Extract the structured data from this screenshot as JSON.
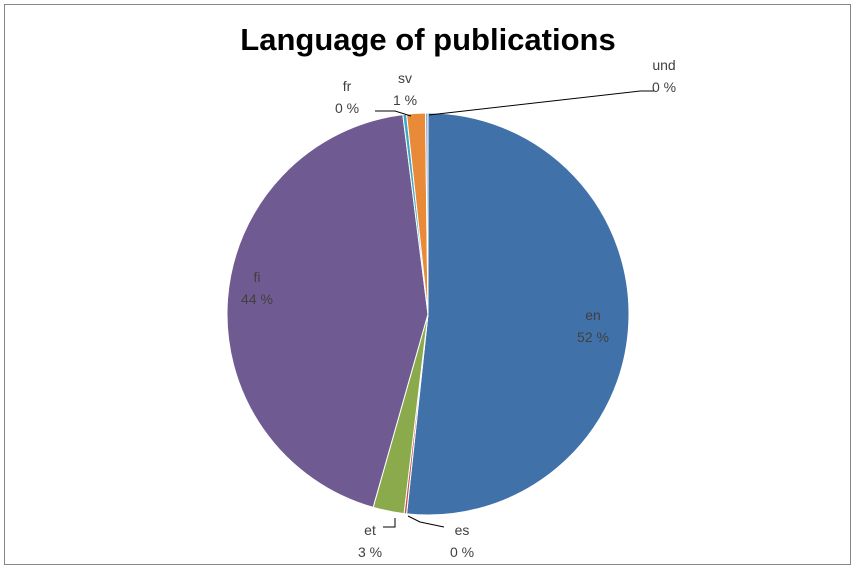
{
  "chart_data": {
    "type": "pie",
    "title": "Language of publications",
    "slices": [
      {
        "category": "en",
        "value": 51.7,
        "display": "52 %",
        "color": "#4071A9"
      },
      {
        "category": "es",
        "value": 0.2,
        "display": "0 %",
        "color": "#C0504D"
      },
      {
        "category": "et",
        "value": 2.5,
        "display": "3 %",
        "color": "#8BAA4B"
      },
      {
        "category": "fi",
        "value": 43.6,
        "display": "44 %",
        "color": "#705A92"
      },
      {
        "category": "fr",
        "value": 0.3,
        "display": "0 %",
        "color": "#3EA7C3"
      },
      {
        "category": "sv",
        "value": 1.5,
        "display": "1 %",
        "color": "#E88A37"
      },
      {
        "category": "und",
        "value": 0.2,
        "display": "0 %",
        "color": "#93A9CF"
      }
    ],
    "legend": "none"
  }
}
